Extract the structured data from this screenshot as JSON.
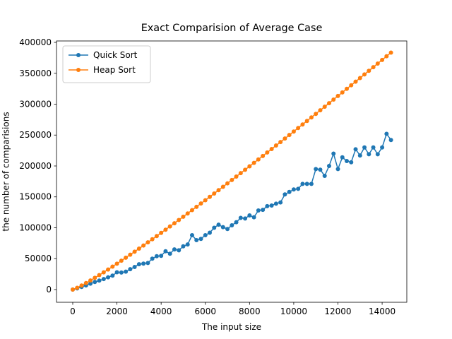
{
  "chart_data": {
    "type": "line",
    "title": "Exact Comparision of Average Case",
    "xlabel": "The input size",
    "ylabel": "the number of comparisions",
    "x": [
      0,
      200,
      400,
      600,
      800,
      1000,
      1200,
      1400,
      1600,
      1800,
      2000,
      2200,
      2400,
      2600,
      2800,
      3000,
      3200,
      3400,
      3600,
      3800,
      4000,
      4200,
      4400,
      4600,
      4800,
      5000,
      5200,
      5400,
      5600,
      5800,
      6000,
      6200,
      6400,
      6600,
      6800,
      7000,
      7200,
      7400,
      7600,
      7800,
      8000,
      8200,
      8400,
      8600,
      8800,
      9000,
      9200,
      9400,
      9600,
      9800,
      10000,
      10200,
      10400,
      10600,
      10800,
      11000,
      11200,
      11400,
      11600,
      11800,
      12000,
      12200,
      12400,
      12600,
      12800,
      13000,
      13200,
      13400,
      13600,
      13800,
      14000,
      14200,
      14400
    ],
    "series": [
      {
        "name": "Quick Sort",
        "color": "#1f77b4",
        "values": [
          0,
          1900,
          4200,
          6700,
          9500,
          12200,
          14500,
          17000,
          19800,
          22500,
          28000,
          27500,
          29000,
          33000,
          36500,
          41000,
          42000,
          43000,
          50000,
          54000,
          54500,
          62000,
          58000,
          65000,
          63500,
          70000,
          73000,
          88000,
          80000,
          82000,
          88000,
          92000,
          100000,
          105000,
          101000,
          98000,
          104000,
          109000,
          116000,
          115000,
          120000,
          117000,
          128000,
          129000,
          135000,
          136000,
          139000,
          141000,
          154000,
          158000,
          162000,
          163000,
          171000,
          171000,
          171000,
          195000,
          194000,
          184000,
          200000,
          220000,
          195000,
          214000,
          208000,
          206000,
          227000,
          217000,
          230000,
          219000,
          230000,
          219000,
          230000,
          252000,
          242000
        ]
      },
      {
        "name": "Heap Sort",
        "color": "#ff7f0e",
        "values": [
          0,
          2858,
          6515,
          10475,
          14630,
          18932,
          23350,
          27863,
          32461,
          37130,
          41864,
          46653,
          51499,
          56389,
          61326,
          66306,
          71322,
          76371,
          81461,
          86579,
          91728,
          96902,
          102106,
          107336,
          112598,
          117880,
          123178,
          128509,
          133851,
          139223,
          144612,
          150015,
          155443,
          160882,
          166342,
          171822,
          177322,
          182824,
          188358,
          193892,
          199456,
          205016,
          210605,
          216204,
          221813,
          227448,
          233073,
          238722,
          244397,
          250076,
          255760,
          261467,
          267155,
          272886,
          278618,
          284350,
          290102,
          295876,
          301646,
          307437,
          313224,
          319030,
          324830,
          330649,
          336486,
          342316,
          348163,
          354028,
          359883,
          365755,
          371644,
          377550,
          383443
        ]
      }
    ],
    "xlim": [
      -735,
      15116
    ],
    "xticks": [
      0,
      2000,
      4000,
      6000,
      8000,
      10000,
      12000,
      14000
    ],
    "ylim": [
      -20600,
      402300
    ],
    "yticks": [
      0,
      50000,
      100000,
      150000,
      200000,
      250000,
      300000,
      350000,
      400000
    ],
    "legend": "upper left"
  }
}
